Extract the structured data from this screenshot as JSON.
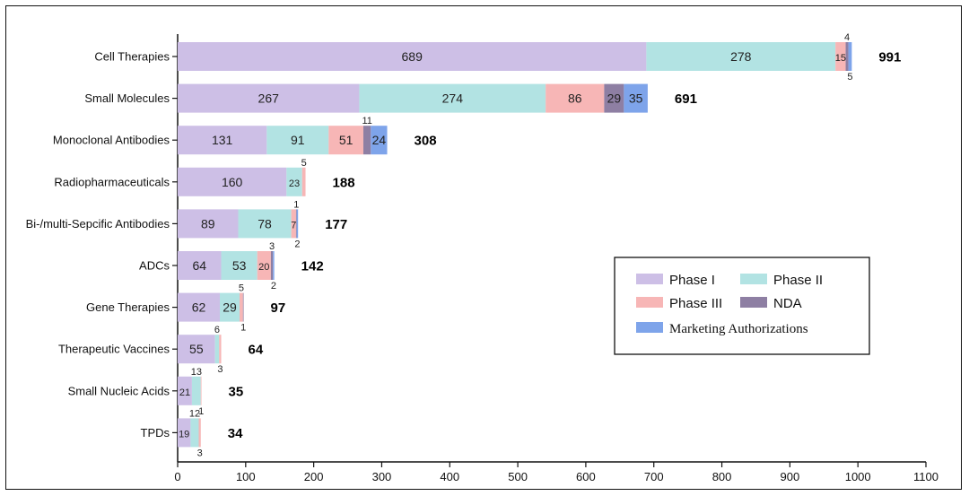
{
  "chart_data": {
    "type": "bar",
    "orientation": "horizontal",
    "stacked": true,
    "categories": [
      "Cell Therapies",
      "Small Molecules",
      "Monoclonal Antibodies",
      "Radiopharmaceuticals",
      "Bi-/multi-Sepcific Antibodies",
      "ADCs",
      "Gene Therapies",
      "Therapeutic Vaccines",
      "Small Nucleic Acids",
      "TPDs"
    ],
    "series": [
      {
        "name": "Phase I",
        "color": "#cdbfe6",
        "values": [
          689,
          267,
          131,
          160,
          89,
          64,
          62,
          55,
          21,
          19
        ]
      },
      {
        "name": "Phase II",
        "color": "#b2e3e3",
        "values": [
          278,
          274,
          91,
          23,
          78,
          53,
          29,
          6,
          13,
          12
        ]
      },
      {
        "name": "Phase III",
        "color": "#f7b6b6",
        "values": [
          15,
          86,
          51,
          5,
          7,
          20,
          5,
          3,
          1,
          3
        ]
      },
      {
        "name": "NDA",
        "color": "#8e7fa3",
        "values": [
          4,
          29,
          11,
          0,
          1,
          3,
          1,
          0,
          0,
          0
        ]
      },
      {
        "name": "Marketing Authorizations",
        "color": "#7ea4ea",
        "values": [
          5,
          35,
          24,
          0,
          2,
          2,
          0,
          0,
          0,
          0
        ]
      }
    ],
    "segment_labels": [
      [
        {
          "s": 0,
          "t": "689",
          "pos": "inside"
        },
        {
          "s": 1,
          "t": "278",
          "pos": "inside"
        },
        {
          "s": 2,
          "t": "15",
          "pos": "inside"
        },
        {
          "s": 3,
          "t": "4",
          "pos": "above"
        },
        {
          "s": 4,
          "t": "5",
          "pos": "below"
        }
      ],
      [
        {
          "s": 0,
          "t": "267",
          "pos": "inside"
        },
        {
          "s": 1,
          "t": "274",
          "pos": "inside"
        },
        {
          "s": 2,
          "t": "86",
          "pos": "inside"
        },
        {
          "s": 3,
          "t": "29",
          "pos": "inside"
        },
        {
          "s": 4,
          "t": "35",
          "pos": "inside"
        }
      ],
      [
        {
          "s": 0,
          "t": "131",
          "pos": "inside"
        },
        {
          "s": 1,
          "t": "91",
          "pos": "inside"
        },
        {
          "s": 2,
          "t": "51",
          "pos": "inside"
        },
        {
          "s": 3,
          "t": "11",
          "pos": "above"
        },
        {
          "s": 4,
          "t": "24",
          "pos": "inside"
        }
      ],
      [
        {
          "s": 0,
          "t": "160",
          "pos": "inside"
        },
        {
          "s": 1,
          "t": "23",
          "pos": "inside"
        },
        {
          "s": 2,
          "t": "5",
          "pos": "above"
        }
      ],
      [
        {
          "s": 0,
          "t": "89",
          "pos": "inside"
        },
        {
          "s": 1,
          "t": "78",
          "pos": "inside"
        },
        {
          "s": 2,
          "t": "7",
          "pos": "inside"
        },
        {
          "s": 3,
          "t": "1",
          "pos": "above"
        },
        {
          "s": 4,
          "t": "2",
          "pos": "below"
        }
      ],
      [
        {
          "s": 0,
          "t": "64",
          "pos": "inside"
        },
        {
          "s": 1,
          "t": "53",
          "pos": "inside"
        },
        {
          "s": 2,
          "t": "20",
          "pos": "inside"
        },
        {
          "s": 3,
          "t": "3",
          "pos": "above"
        },
        {
          "s": 4,
          "t": "2",
          "pos": "below"
        }
      ],
      [
        {
          "s": 0,
          "t": "62",
          "pos": "inside"
        },
        {
          "s": 1,
          "t": "29",
          "pos": "inside"
        },
        {
          "s": 2,
          "t": "5",
          "pos": "above"
        },
        {
          "s": 3,
          "t": "1",
          "pos": "below"
        }
      ],
      [
        {
          "s": 0,
          "t": "55",
          "pos": "inside"
        },
        {
          "s": 1,
          "t": "6",
          "pos": "above"
        },
        {
          "s": 2,
          "t": "3",
          "pos": "below"
        }
      ],
      [
        {
          "s": 0,
          "t": "21",
          "pos": "inside"
        },
        {
          "s": 1,
          "t": "13",
          "pos": "above"
        },
        {
          "s": 2,
          "t": "1",
          "pos": "below"
        }
      ],
      [
        {
          "s": 0,
          "t": "19",
          "pos": "inside"
        },
        {
          "s": 1,
          "t": "12",
          "pos": "above"
        },
        {
          "s": 2,
          "t": "3",
          "pos": "below"
        }
      ]
    ],
    "totals": [
      "991",
      "691",
      "308",
      "188",
      "177",
      "142",
      "97",
      "64",
      "35",
      "34"
    ],
    "xlim": [
      0,
      1100
    ],
    "xticks": [
      0,
      100,
      200,
      300,
      400,
      500,
      600,
      700,
      800,
      900,
      1000,
      1100
    ],
    "xlabel": "",
    "ylabel": "",
    "grid": false,
    "legend_position": "bottom-right"
  }
}
